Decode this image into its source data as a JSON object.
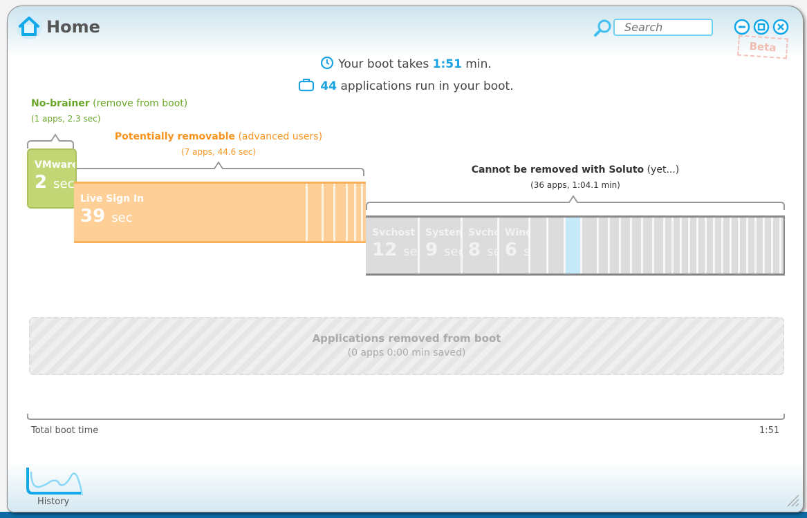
{
  "window": {
    "title": "Home",
    "search_placeholder": "Search",
    "badge": "Beta"
  },
  "summary": {
    "boot_prefix": "Your boot takes ",
    "boot_time": "1:51",
    "boot_suffix": " min.",
    "apps_count": "44",
    "apps_suffix": " applications run in your boot."
  },
  "groups": {
    "nobrainer": {
      "title": "No-brainer",
      "note": " (remove from boot)",
      "stats": "(1 apps, 2.3 sec)",
      "color": "#6aa52b"
    },
    "removable": {
      "title": "Potentially removable",
      "note": " (advanced users)",
      "stats": "(7 apps, 44.6 sec)",
      "color": "#f7941d"
    },
    "cannot": {
      "title": "Cannot be removed with Soluto",
      "note": " (yet...)",
      "stats": "(36 apps, 1:04.1 min)",
      "color": "#333333"
    }
  },
  "apps": {
    "nobrainer": [
      {
        "name": "VMware",
        "value": "2",
        "unit": "sec"
      }
    ],
    "removable": [
      {
        "name": "Live Sign In",
        "value": "39",
        "unit": "sec"
      }
    ],
    "cannot": [
      {
        "name": "Svchost",
        "value": "12",
        "unit": "sec"
      },
      {
        "name": "System",
        "value": "9",
        "unit": "sec"
      },
      {
        "name": "Svchost",
        "value": "8",
        "unit": "sec"
      },
      {
        "name": "Windows",
        "value": "6",
        "unit": "sec"
      }
    ]
  },
  "removed": {
    "title": "Applications removed from boot",
    "stats": "(0 apps 0:00 min saved)"
  },
  "timeline": {
    "label": "Total boot time",
    "end": "1:51"
  },
  "footer": {
    "history_label": "History"
  },
  "colors": {
    "accent": "#1aa3e0",
    "nobrainer_bar": "#c2d676",
    "removable_bar": "#fecf97",
    "cannot_bar": "#dcdcdc",
    "highlight": "#c5e9f9"
  }
}
